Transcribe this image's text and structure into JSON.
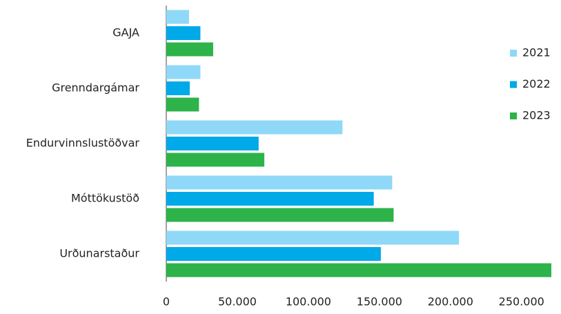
{
  "chart_data": {
    "type": "bar",
    "orientation": "horizontal",
    "categories": [
      "GAJA",
      "Grenndargámar",
      "Endurvinnslustöðvar",
      "Móttökustöð",
      "Urðunarstaður"
    ],
    "series": [
      {
        "name": "2021",
        "color": "#8fd8f7",
        "values": [
          16000,
          24000,
          124000,
          159000,
          206000
        ]
      },
      {
        "name": "2022",
        "color": "#00a9e8",
        "values": [
          24000,
          16500,
          65000,
          146000,
          151000
        ]
      },
      {
        "name": "2023",
        "color": "#2db34a",
        "values": [
          33000,
          23000,
          69000,
          160000,
          271000
        ]
      }
    ],
    "xlim": [
      0,
      271000
    ],
    "xticks": [
      0,
      {
        "value": 50000,
        "label": "50.000"
      },
      {
        "value": 100000,
        "label": "100.000"
      },
      {
        "value": 150000,
        "label": "150.000"
      },
      {
        "value": 200000,
        "label": "200.000"
      },
      {
        "value": 250000,
        "label": "250.000"
      }
    ],
    "legend": "right"
  }
}
